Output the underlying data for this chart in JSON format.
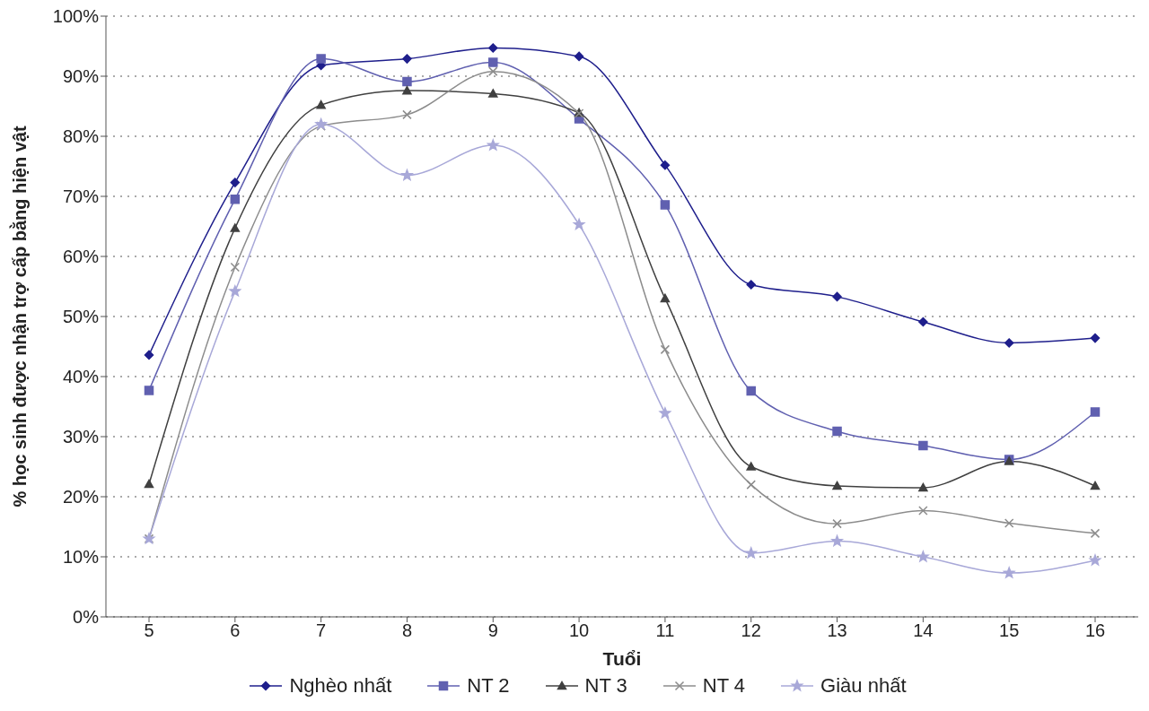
{
  "chart_data": {
    "type": "line",
    "xlabel": "Tuổi",
    "ylabel": "% học sinh được nhận trợ cấp bằng hiện vật",
    "categories": [
      "5",
      "6",
      "7",
      "8",
      "9",
      "10",
      "11",
      "12",
      "13",
      "14",
      "15",
      "16"
    ],
    "ylim": [
      0,
      100
    ],
    "yticks": [
      {
        "value": 0,
        "label": "0%"
      },
      {
        "value": 10,
        "label": "10%"
      },
      {
        "value": 20,
        "label": "20%"
      },
      {
        "value": 30,
        "label": "30%"
      },
      {
        "value": 40,
        "label": "40%"
      },
      {
        "value": 50,
        "label": "50%"
      },
      {
        "value": 60,
        "label": "60%"
      },
      {
        "value": 70,
        "label": "70%"
      },
      {
        "value": 80,
        "label": "80%"
      },
      {
        "value": 90,
        "label": "90%"
      },
      {
        "value": 100,
        "label": "100%"
      }
    ],
    "grid": "y",
    "legend": "bottom",
    "series": [
      {
        "name": "Nghèo nhất",
        "color": "#1f1f8c",
        "marker": "diamond",
        "values": [
          43.6,
          72.3,
          91.8,
          92.9,
          94.7,
          93.3,
          75.2,
          55.3,
          53.3,
          49.1,
          45.6,
          46.4
        ]
      },
      {
        "name": "NT 2",
        "color": "#6060b0",
        "marker": "square",
        "values": [
          37.7,
          69.5,
          92.9,
          89.1,
          92.3,
          82.9,
          68.6,
          37.6,
          30.9,
          28.5,
          26.2,
          34.1
        ]
      },
      {
        "name": "NT 3",
        "color": "#404040",
        "marker": "triangle",
        "values": [
          22.1,
          64.7,
          85.2,
          87.6,
          87.1,
          83.9,
          53.0,
          25.0,
          21.8,
          21.5,
          25.9,
          21.8
        ]
      },
      {
        "name": "NT 4",
        "color": "#8c8c8c",
        "marker": "cross",
        "values": [
          13.0,
          58.2,
          81.7,
          83.6,
          90.8,
          83.8,
          44.5,
          22.0,
          15.5,
          17.7,
          15.6,
          13.9
        ]
      },
      {
        "name": "Giàu nhất",
        "color": "#a8a8d8",
        "marker": "star",
        "values": [
          13.0,
          54.2,
          82.0,
          73.5,
          78.5,
          65.3,
          33.9,
          10.6,
          12.6,
          10.0,
          7.3,
          9.4
        ]
      }
    ]
  }
}
